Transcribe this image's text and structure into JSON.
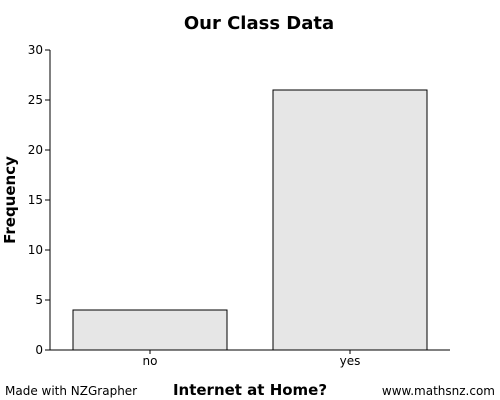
{
  "chart_data": {
    "type": "bar",
    "title": "Our Class Data",
    "xlabel": "Internet at Home?",
    "ylabel": "Frequency",
    "categories": [
      "no",
      "yes"
    ],
    "values": [
      4,
      26
    ],
    "ylim": [
      0,
      30
    ],
    "yticks": [
      "0",
      "5",
      "10",
      "15",
      "20",
      "25",
      "30"
    ],
    "bar_color": "#e6e6e6",
    "bar_stroke": "#000000",
    "grid": false,
    "legend": "none"
  },
  "footer": {
    "left": "Made with NZGrapher",
    "right": "www.mathsnz.com"
  }
}
